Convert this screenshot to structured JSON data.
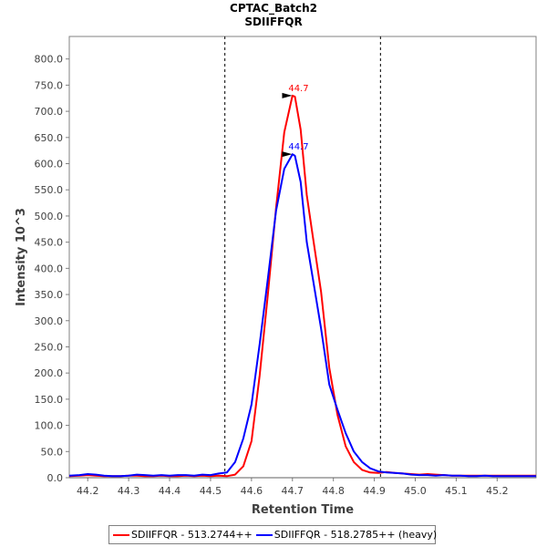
{
  "chart_data": {
    "type": "line",
    "title": "CPTAC_Batch2",
    "subtitle": "SDIIFFQR",
    "xlabel": "Retention Time",
    "ylabel": "Intensity 10^3",
    "xlim": [
      44.155,
      45.295
    ],
    "ylim": [
      0,
      843
    ],
    "x_ticks": [
      "44.2",
      "44.3",
      "44.4",
      "44.5",
      "44.6",
      "44.7",
      "44.8",
      "44.9",
      "45.0",
      "45.1",
      "45.2"
    ],
    "y_ticks": [
      "0.0",
      "50.0",
      "100.0",
      "150.0",
      "200.0",
      "250.0",
      "300.0",
      "350.0",
      "400.0",
      "450.0",
      "500.0",
      "550.0",
      "600.0",
      "650.0",
      "700.0",
      "750.0",
      "800.0"
    ],
    "integration_bounds": [
      44.535,
      44.915
    ],
    "series": [
      {
        "name": "SDIIFFQR - 513.2744++",
        "color": "#ff0000",
        "x": [
          44.155,
          44.18,
          44.2,
          44.22,
          44.24,
          44.26,
          44.28,
          44.3,
          44.32,
          44.34,
          44.36,
          44.38,
          44.4,
          44.42,
          44.44,
          44.46,
          44.48,
          44.5,
          44.52,
          44.54,
          44.56,
          44.58,
          44.6,
          44.62,
          44.64,
          44.66,
          44.68,
          44.7,
          44.706,
          44.72,
          44.735,
          44.75,
          44.77,
          44.79,
          44.81,
          44.83,
          44.85,
          44.87,
          44.89,
          44.91,
          44.93,
          44.95,
          44.97,
          44.99,
          45.01,
          45.03,
          45.05,
          45.07,
          45.09,
          45.11,
          45.13,
          45.15,
          45.17,
          45.19,
          45.21,
          45.23,
          45.25,
          45.27,
          45.295
        ],
        "values": [
          3,
          4,
          5,
          4,
          3,
          3,
          3,
          4,
          4,
          3,
          3,
          4,
          3,
          3,
          4,
          3,
          4,
          3,
          4,
          3,
          6,
          22,
          70,
          195,
          350,
          515,
          660,
          730,
          728,
          665,
          540,
          460,
          355,
          210,
          120,
          60,
          30,
          15,
          10,
          9,
          11,
          9,
          8,
          7,
          6,
          7,
          6,
          5,
          4,
          4,
          4,
          4,
          4,
          4,
          4,
          4,
          4,
          4,
          4
        ]
      },
      {
        "name": "SDIIFFQR - 518.2785++ (heavy)",
        "color": "#0000ff",
        "x": [
          44.155,
          44.18,
          44.2,
          44.22,
          44.24,
          44.26,
          44.28,
          44.3,
          44.32,
          44.34,
          44.36,
          44.38,
          44.4,
          44.42,
          44.44,
          44.46,
          44.48,
          44.5,
          44.52,
          44.54,
          44.56,
          44.58,
          44.6,
          44.62,
          44.64,
          44.66,
          44.68,
          44.7,
          44.706,
          44.72,
          44.735,
          44.75,
          44.77,
          44.79,
          44.81,
          44.83,
          44.85,
          44.87,
          44.89,
          44.91,
          44.93,
          44.95,
          44.97,
          44.99,
          45.01,
          45.03,
          45.05,
          45.07,
          45.09,
          45.11,
          45.13,
          45.15,
          45.17,
          45.19,
          45.21,
          45.23,
          45.25,
          45.27,
          45.295
        ],
        "values": [
          4,
          5,
          7,
          6,
          4,
          3,
          3,
          4,
          6,
          5,
          4,
          5,
          4,
          5,
          5,
          4,
          6,
          5,
          8,
          10,
          30,
          75,
          140,
          255,
          380,
          510,
          590,
          618,
          615,
          565,
          450,
          380,
          285,
          178,
          130,
          85,
          50,
          30,
          18,
          12,
          10,
          9,
          8,
          6,
          5,
          5,
          4,
          5,
          4,
          4,
          3,
          3,
          4,
          3,
          3,
          3,
          3,
          3,
          3
        ]
      }
    ],
    "annotations": [
      {
        "text": "44.7",
        "x": 44.706,
        "y": 730,
        "color": "#ff0000"
      },
      {
        "text": "44.7",
        "x": 44.706,
        "y": 618,
        "color": "#0000ff"
      }
    ]
  },
  "legend": {
    "items": [
      {
        "label": "SDIIFFQR - 513.2744++",
        "color": "#ff0000"
      },
      {
        "label": "SDIIFFQR - 518.2785++ (heavy)",
        "color": "#0000ff"
      }
    ]
  }
}
